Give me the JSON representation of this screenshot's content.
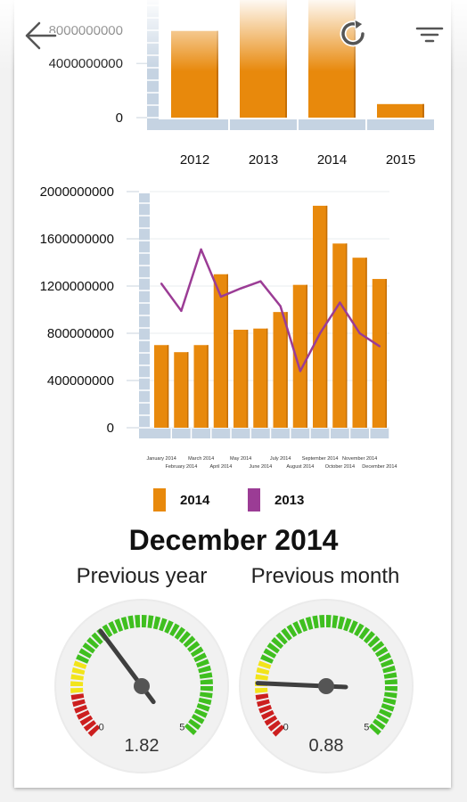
{
  "toolbar": {
    "back_icon": "arrow-left-icon",
    "refresh_icon": "refresh-icon",
    "filter_icon": "filter-icon"
  },
  "colors": {
    "bar": "#e8890c",
    "bar_dark": "#c46f06",
    "line_2013": "#9b3c95",
    "axis_band": "#c5d3e2",
    "gauge_red": "#cc1f1f",
    "gauge_yellow": "#f2e41a",
    "gauge_green": "#3fbf1f"
  },
  "chart_data": [
    {
      "type": "bar",
      "categories": [
        "2012",
        "2013",
        "2014",
        "2015"
      ],
      "values": [
        6400000000,
        10300000000,
        10300000000,
        1000000000
      ],
      "y_ticks": [
        "4000000000",
        "0"
      ],
      "y_tick_values": [
        4000000000,
        0
      ],
      "y_tick_partial": "8000000000",
      "ylim": [
        0,
        10000000000
      ]
    },
    {
      "type": "bar+line",
      "categories": [
        "January 2014",
        "February 2014",
        "March 2014",
        "April 2014",
        "May 2014",
        "June 2014",
        "July 2014",
        "August 2014",
        "September 2014",
        "October 2014",
        "November 2014",
        "December 2014"
      ],
      "series": [
        {
          "name": "2014",
          "type": "bar",
          "values": [
            700000000,
            640000000,
            700000000,
            1300000000,
            830000000,
            840000000,
            980000000,
            1210000000,
            1880000000,
            1560000000,
            1440000000,
            1260000000
          ]
        },
        {
          "name": "2013",
          "type": "line",
          "values": [
            1220000000,
            990000000,
            1510000000,
            1110000000,
            1180000000,
            1240000000,
            1030000000,
            480000000,
            800000000,
            1060000000,
            800000000,
            690000000
          ]
        }
      ],
      "y_ticks": [
        "2000000000",
        "1600000000",
        "1200000000",
        "800000000",
        "400000000",
        "0"
      ],
      "y_tick_values": [
        2000000000,
        1600000000,
        1200000000,
        800000000,
        400000000,
        0
      ],
      "ylim": [
        0,
        2000000000
      ]
    }
  ],
  "gauges": {
    "title": "December 2014",
    "items": [
      {
        "label": "Previous year",
        "value": 1.82,
        "value_text": "1.82",
        "min": 0,
        "max": 5,
        "min_label": "0",
        "max_label": "5"
      },
      {
        "label": "Previous month",
        "value": 0.88,
        "value_text": "0.88",
        "min": 0,
        "max": 5,
        "min_label": "0",
        "max_label": "5"
      }
    ]
  }
}
